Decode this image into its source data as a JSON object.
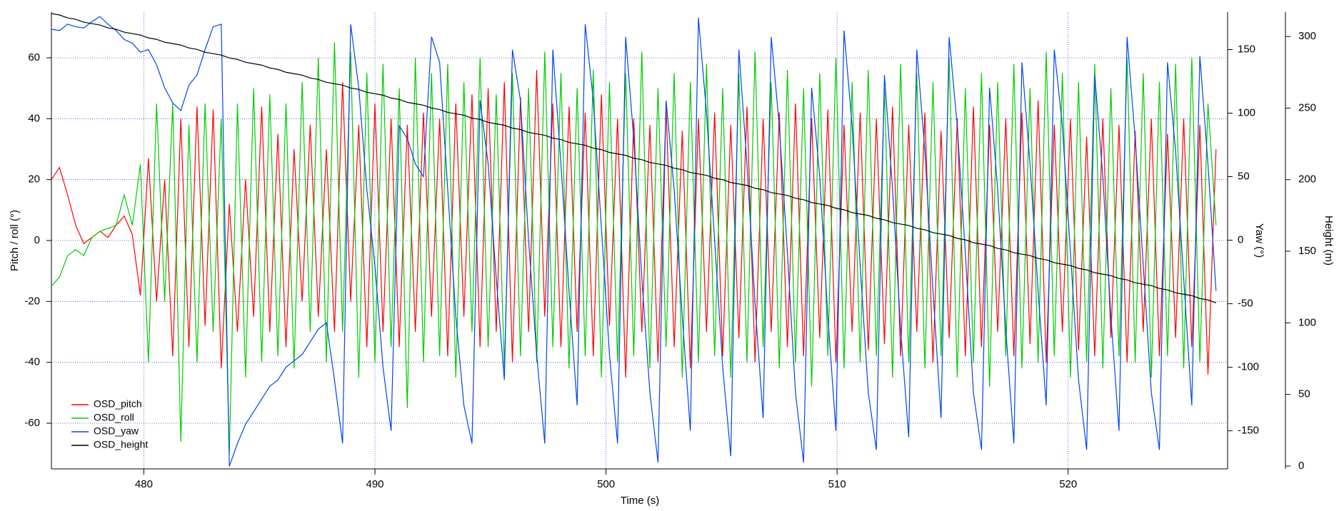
{
  "chart_data": {
    "type": "line",
    "xlabel": "Time (s)",
    "ylabel": "Pitch / roll (°)",
    "y2label": "Yaw (°)",
    "y3label": "Height (m)",
    "xlim": [
      476,
      526.9
    ],
    "xticks": [
      480,
      490,
      500,
      510,
      520
    ],
    "ylim": [
      -75,
      75
    ],
    "yticks": [
      -60,
      -40,
      -20,
      0,
      20,
      40,
      60
    ],
    "y2lim": [
      -180,
      179.5
    ],
    "y2ticks": [
      -150,
      -100,
      -50,
      0,
      50,
      100,
      150
    ],
    "y3lim": [
      -2,
      317
    ],
    "y3ticks": [
      0,
      50,
      100,
      150,
      200,
      250,
      300
    ],
    "grid": true,
    "legend": "lower left",
    "x": [
      476,
      476.35,
      476.7,
      477.05,
      477.4,
      477.75,
      478.1,
      478.45,
      478.8,
      479.15,
      479.5,
      479.85,
      480.2,
      480.55,
      480.9,
      481.25,
      481.6,
      481.95,
      482.3,
      482.65,
      483,
      483.35,
      483.7,
      484.05,
      484.4,
      484.75,
      485.1,
      485.45,
      485.8,
      486.15,
      486.5,
      486.85,
      487.2,
      487.55,
      487.9,
      488.25,
      488.6,
      488.95,
      489.3,
      489.65,
      490,
      490.35,
      490.7,
      491.05,
      491.4,
      491.75,
      492.1,
      492.45,
      492.8,
      493.15,
      493.5,
      493.85,
      494.2,
      494.55,
      494.9,
      495.25,
      495.6,
      495.95,
      496.3,
      496.65,
      497,
      497.35,
      497.7,
      498.05,
      498.4,
      498.75,
      499.1,
      499.45,
      499.8,
      500.15,
      500.5,
      500.85,
      501.2,
      501.55,
      501.9,
      502.25,
      502.6,
      502.95,
      503.3,
      503.65,
      504,
      504.35,
      504.7,
      505.05,
      505.4,
      505.75,
      506.1,
      506.45,
      506.8,
      507.15,
      507.5,
      507.85,
      508.2,
      508.55,
      508.9,
      509.25,
      509.6,
      509.95,
      510.3,
      510.65,
      511,
      511.35,
      511.7,
      512.05,
      512.4,
      512.75,
      513.1,
      513.45,
      513.8,
      514.15,
      514.5,
      514.85,
      515.2,
      515.55,
      515.9,
      516.25,
      516.6,
      516.95,
      517.3,
      517.65,
      518,
      518.35,
      518.7,
      519.05,
      519.4,
      519.75,
      520.1,
      520.45,
      520.8,
      521.15,
      521.5,
      521.85,
      522.2,
      522.55,
      522.9,
      523.25,
      523.6,
      523.95,
      524.3,
      524.65,
      525,
      525.35,
      525.7,
      526.05,
      526.4
    ],
    "series": [
      {
        "name": "OSD_pitch",
        "color": "#ff0000",
        "axis": "y",
        "values": [
          20,
          24,
          15,
          5,
          -1,
          1,
          3,
          1,
          5,
          8,
          2,
          -18,
          27,
          -20,
          20,
          -38,
          40,
          -35,
          44,
          -28,
          43,
          -42,
          12,
          -30,
          20,
          -25,
          44,
          -30,
          35,
          -35,
          30,
          -20,
          38,
          -25,
          30,
          -30,
          52,
          -20,
          38,
          -35,
          45,
          -30,
          40,
          -35,
          38,
          -30,
          42,
          -25,
          40,
          -38,
          45,
          -25,
          48,
          -35,
          50,
          -30,
          52,
          -40,
          47,
          -30,
          56,
          -25,
          45,
          -35,
          44,
          -30,
          42,
          -38,
          48,
          -28,
          40,
          -45,
          40,
          -30,
          38,
          -40,
          44,
          -35,
          36,
          -42,
          40,
          -30,
          42,
          -38,
          38,
          -32,
          44,
          -40,
          40,
          -30,
          42,
          -35,
          45,
          -38,
          40,
          -32,
          43,
          -40,
          38,
          -30,
          42,
          -36,
          40,
          -34,
          44,
          -38,
          38,
          -30,
          42,
          -40,
          36,
          -32,
          40,
          -38,
          44,
          -35,
          38,
          -30,
          40,
          -38,
          42,
          -34,
          46,
          -40,
          38,
          -30,
          40,
          -36,
          34,
          -38,
          40,
          -32,
          38,
          -40,
          36,
          -30,
          40,
          -38,
          35,
          -32,
          40,
          -35,
          38,
          -44,
          30
        ]
      },
      {
        "name": "OSD_roll",
        "color": "#00cc00",
        "axis": "y",
        "values": [
          -15,
          -12,
          -5,
          -3,
          -5,
          1,
          3,
          4,
          5,
          15,
          5,
          25,
          -40,
          45,
          -20,
          45,
          -66,
          38,
          -40,
          45,
          -30,
          40,
          -70,
          45,
          -45,
          50,
          -40,
          48,
          -38,
          45,
          -42,
          52,
          -30,
          60,
          -40,
          65,
          -30,
          62,
          -45,
          55,
          -40,
          58,
          -35,
          50,
          -55,
          60,
          -40,
          55,
          -38,
          58,
          -45,
          52,
          -30,
          60,
          -35,
          48,
          -42,
          55,
          -38,
          50,
          -40,
          62,
          -35,
          55,
          -42,
          50,
          -38,
          56,
          -45,
          52,
          -40,
          55,
          -38,
          62,
          -42,
          50,
          -35,
          55,
          -45,
          52,
          -40,
          58,
          -38,
          50,
          -45,
          55,
          -40,
          62,
          -35,
          52,
          -42,
          56,
          -40,
          50,
          -48,
          55,
          -38,
          60,
          -42,
          52,
          -40,
          56,
          -38,
          50,
          -45,
          58,
          -40,
          55,
          -42,
          52,
          -38,
          60,
          -45,
          50,
          -40,
          55,
          -48,
          52,
          -38,
          58,
          -42,
          50,
          -40,
          62,
          -38,
          55,
          -45,
          52,
          -40,
          58,
          -42,
          50,
          -38,
          60,
          -40,
          55,
          -45,
          52,
          -38,
          58,
          -42,
          60,
          -40,
          45,
          5
        ]
      },
      {
        "name": "OSD_yaw",
        "color": "#0044ee",
        "axis": "y2",
        "values": [
          166,
          165,
          170,
          168,
          167,
          172,
          176,
          170,
          165,
          158,
          155,
          148,
          150,
          138,
          120,
          108,
          102,
          122,
          130,
          150,
          168,
          170,
          -178,
          -160,
          -145,
          -135,
          -125,
          -115,
          -110,
          -100,
          -95,
          -90,
          -80,
          -70,
          -65,
          -110,
          -160,
          170,
          120,
          40,
          -20,
          -100,
          -150,
          90,
          80,
          60,
          50,
          160,
          140,
          40,
          -60,
          -130,
          -160,
          110,
          60,
          -30,
          -110,
          150,
          110,
          0,
          -90,
          -160,
          150,
          60,
          -40,
          -130,
          170,
          110,
          10,
          -90,
          -160,
          160,
          80,
          -30,
          -120,
          -175,
          110,
          40,
          -60,
          -150,
          175,
          100,
          0,
          -100,
          -170,
          150,
          60,
          -50,
          -140,
          160,
          90,
          -10,
          -120,
          -175,
          120,
          50,
          -60,
          -150,
          165,
          90,
          -20,
          -120,
          -165,
          130,
          40,
          -70,
          -155,
          150,
          70,
          -40,
          -140,
          160,
          90,
          -10,
          -120,
          -165,
          120,
          40,
          -70,
          -160,
          140,
          60,
          -40,
          -130,
          150,
          90,
          -10,
          -110,
          -165,
          130,
          50,
          -60,
          -150,
          160,
          80,
          -20,
          -120,
          -165,
          140,
          70,
          -30,
          -130,
          145,
          60,
          -40
        ]
      },
      {
        "name": "OSD_height",
        "color": "#000000",
        "axis": "y3",
        "values": [
          316,
          315,
          313,
          312,
          310,
          309,
          308,
          306,
          305,
          303,
          302,
          301,
          299,
          298,
          296,
          295,
          294,
          292,
          291,
          289,
          288,
          287,
          285,
          284,
          282,
          281,
          280,
          278,
          277,
          275,
          274,
          273,
          271,
          270,
          268,
          267,
          266,
          264,
          263,
          261,
          260,
          259,
          257,
          256,
          254,
          253,
          252,
          250,
          249,
          247,
          246,
          245,
          243,
          242,
          240,
          239,
          238,
          236,
          235,
          233,
          232,
          231,
          229,
          228,
          226,
          225,
          224,
          222,
          221,
          219,
          218,
          217,
          215,
          214,
          212,
          211,
          210,
          208,
          207,
          205,
          204,
          203,
          201,
          200,
          198,
          197,
          196,
          194,
          193,
          191,
          190,
          189,
          187,
          186,
          184,
          183,
          182,
          180,
          179,
          177,
          176,
          175,
          173,
          172,
          170,
          169,
          168,
          166,
          165,
          163,
          162,
          161,
          159,
          158,
          156,
          155,
          154,
          152,
          151,
          149,
          148,
          147,
          145,
          144,
          142,
          141,
          140,
          138,
          137,
          135,
          134,
          133,
          131,
          130,
          128,
          127,
          126,
          124,
          123,
          121,
          120,
          119,
          117,
          116,
          114
        ]
      }
    ]
  }
}
